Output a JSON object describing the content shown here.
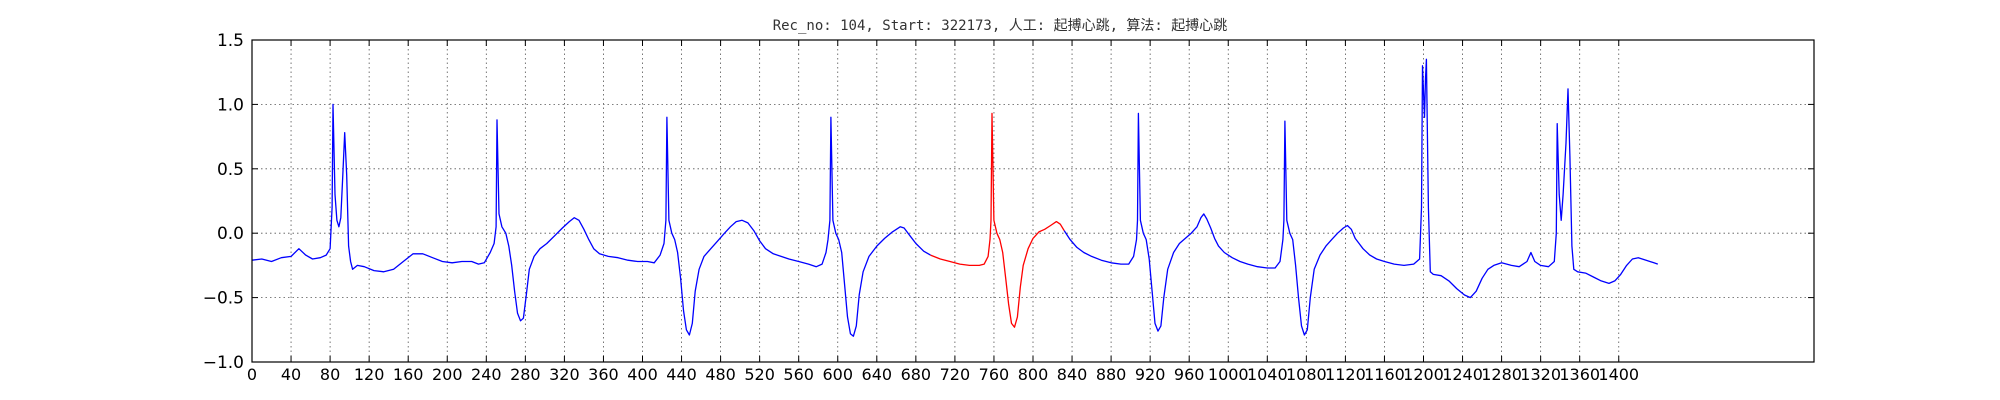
{
  "chart_data": {
    "type": "line",
    "title": "Rec_no: 104, Start: 322173, 人工: 起搏心跳, 算法: 起搏心跳",
    "xlabel": "",
    "ylabel": "",
    "xlim": [
      0,
      1600
    ],
    "ylim": [
      -1.0,
      1.5
    ],
    "grid": true,
    "x_ticks": [
      0,
      40,
      80,
      120,
      160,
      200,
      240,
      280,
      320,
      360,
      400,
      440,
      480,
      520,
      560,
      600,
      640,
      680,
      720,
      760,
      800,
      840,
      880,
      920,
      960,
      1000,
      1040,
      1080,
      1120,
      1160,
      1200,
      1240,
      1280,
      1320,
      1360,
      1400
    ],
    "y_ticks": [
      -1.0,
      -0.5,
      0.0,
      0.5,
      1.0,
      1.5
    ],
    "y_tick_labels": [
      "−1.0",
      "−0.5",
      "0.0",
      "0.5",
      "1.0",
      "1.5"
    ],
    "series": [
      {
        "color": "#0000ff",
        "points": [
          [
            0,
            -0.21
          ],
          [
            10,
            -0.2
          ],
          [
            20,
            -0.22
          ],
          [
            30,
            -0.19
          ],
          [
            40,
            -0.18
          ],
          [
            48,
            -0.12
          ],
          [
            55,
            -0.17
          ],
          [
            62,
            -0.2
          ],
          [
            70,
            -0.19
          ],
          [
            76,
            -0.17
          ],
          [
            80,
            -0.12
          ],
          [
            82,
            0.2
          ],
          [
            83,
            1.0
          ],
          [
            85,
            0.3
          ],
          [
            87,
            0.1
          ],
          [
            89,
            0.05
          ],
          [
            91,
            0.12
          ],
          [
            93,
            0.45
          ],
          [
            95,
            0.78
          ],
          [
            97,
            0.45
          ],
          [
            99,
            -0.1
          ],
          [
            101,
            -0.22
          ],
          [
            103,
            -0.28
          ],
          [
            108,
            -0.25
          ],
          [
            115,
            -0.26
          ],
          [
            125,
            -0.29
          ],
          [
            135,
            -0.3
          ],
          [
            145,
            -0.28
          ],
          [
            155,
            -0.22
          ],
          [
            165,
            -0.16
          ],
          [
            175,
            -0.16
          ],
          [
            185,
            -0.19
          ],
          [
            195,
            -0.22
          ],
          [
            205,
            -0.23
          ],
          [
            215,
            -0.22
          ],
          [
            225,
            -0.22
          ],
          [
            232,
            -0.24
          ],
          [
            238,
            -0.23
          ],
          [
            244,
            -0.15
          ],
          [
            248,
            -0.08
          ],
          [
            250,
            0.05
          ],
          [
            251,
            0.88
          ],
          [
            253,
            0.15
          ],
          [
            256,
            0.05
          ],
          [
            260,
            0.0
          ],
          [
            263,
            -0.1
          ],
          [
            266,
            -0.25
          ],
          [
            269,
            -0.45
          ],
          [
            272,
            -0.62
          ],
          [
            275,
            -0.68
          ],
          [
            278,
            -0.66
          ],
          [
            281,
            -0.48
          ],
          [
            284,
            -0.28
          ],
          [
            289,
            -0.18
          ],
          [
            295,
            -0.12
          ],
          [
            302,
            -0.08
          ],
          [
            310,
            -0.02
          ],
          [
            318,
            0.04
          ],
          [
            325,
            0.09
          ],
          [
            330,
            0.12
          ],
          [
            335,
            0.1
          ],
          [
            340,
            0.03
          ],
          [
            345,
            -0.05
          ],
          [
            350,
            -0.12
          ],
          [
            356,
            -0.16
          ],
          [
            365,
            -0.18
          ],
          [
            375,
            -0.19
          ],
          [
            385,
            -0.21
          ],
          [
            395,
            -0.22
          ],
          [
            405,
            -0.22
          ],
          [
            412,
            -0.23
          ],
          [
            418,
            -0.17
          ],
          [
            422,
            -0.08
          ],
          [
            424,
            0.1
          ],
          [
            425,
            0.9
          ],
          [
            427,
            0.1
          ],
          [
            430,
            0.0
          ],
          [
            433,
            -0.05
          ],
          [
            436,
            -0.15
          ],
          [
            439,
            -0.35
          ],
          [
            442,
            -0.6
          ],
          [
            445,
            -0.75
          ],
          [
            448,
            -0.79
          ],
          [
            451,
            -0.7
          ],
          [
            454,
            -0.45
          ],
          [
            458,
            -0.28
          ],
          [
            463,
            -0.18
          ],
          [
            470,
            -0.12
          ],
          [
            477,
            -0.06
          ],
          [
            484,
            0.0
          ],
          [
            490,
            0.05
          ],
          [
            496,
            0.09
          ],
          [
            502,
            0.1
          ],
          [
            508,
            0.08
          ],
          [
            514,
            0.02
          ],
          [
            520,
            -0.06
          ],
          [
            526,
            -0.12
          ],
          [
            534,
            -0.16
          ],
          [
            542,
            -0.18
          ],
          [
            550,
            -0.2
          ],
          [
            560,
            -0.22
          ],
          [
            570,
            -0.24
          ],
          [
            578,
            -0.26
          ],
          [
            584,
            -0.24
          ],
          [
            588,
            -0.15
          ],
          [
            590,
            -0.05
          ],
          [
            592,
            0.1
          ],
          [
            593,
            0.9
          ],
          [
            595,
            0.1
          ],
          [
            598,
            0.0
          ],
          [
            601,
            -0.05
          ],
          [
            604,
            -0.15
          ],
          [
            607,
            -0.4
          ],
          [
            610,
            -0.65
          ],
          [
            613,
            -0.78
          ],
          [
            616,
            -0.8
          ],
          [
            619,
            -0.72
          ],
          [
            622,
            -0.48
          ],
          [
            626,
            -0.3
          ],
          [
            632,
            -0.18
          ],
          [
            640,
            -0.1
          ],
          [
            648,
            -0.04
          ],
          [
            656,
            0.01
          ],
          [
            664,
            0.05
          ],
          [
            668,
            0.04
          ],
          [
            674,
            -0.02
          ],
          [
            680,
            -0.08
          ],
          [
            688,
            -0.14
          ],
          [
            695,
            -0.17
          ]
        ]
      },
      {
        "color": "#ff0000",
        "points": [
          [
            695,
            -0.17
          ],
          [
            705,
            -0.2
          ],
          [
            715,
            -0.22
          ],
          [
            725,
            -0.24
          ],
          [
            735,
            -0.25
          ],
          [
            745,
            -0.25
          ],
          [
            750,
            -0.24
          ],
          [
            754,
            -0.18
          ],
          [
            756,
            -0.05
          ],
          [
            757,
            0.1
          ],
          [
            758,
            0.93
          ],
          [
            760,
            0.1
          ],
          [
            763,
            0.0
          ],
          [
            766,
            -0.05
          ],
          [
            769,
            -0.15
          ],
          [
            772,
            -0.35
          ],
          [
            775,
            -0.55
          ],
          [
            778,
            -0.7
          ],
          [
            781,
            -0.73
          ],
          [
            784,
            -0.65
          ],
          [
            787,
            -0.42
          ],
          [
            790,
            -0.25
          ],
          [
            795,
            -0.12
          ],
          [
            800,
            -0.04
          ],
          [
            806,
            0.01
          ],
          [
            812,
            0.03
          ],
          [
            818,
            0.06
          ],
          [
            824,
            0.09
          ],
          [
            828,
            0.07
          ],
          [
            832,
            0.02
          ]
        ]
      },
      {
        "color": "#0000ff",
        "points": [
          [
            832,
            0.02
          ],
          [
            838,
            -0.05
          ],
          [
            845,
            -0.11
          ],
          [
            852,
            -0.15
          ],
          [
            860,
            -0.18
          ],
          [
            870,
            -0.21
          ],
          [
            880,
            -0.23
          ],
          [
            890,
            -0.24
          ],
          [
            898,
            -0.24
          ],
          [
            903,
            -0.18
          ],
          [
            906,
            -0.05
          ],
          [
            907,
            0.1
          ],
          [
            908,
            0.93
          ],
          [
            910,
            0.1
          ],
          [
            913,
            0.0
          ],
          [
            916,
            -0.05
          ],
          [
            919,
            -0.2
          ],
          [
            922,
            -0.45
          ],
          [
            925,
            -0.7
          ],
          [
            928,
            -0.76
          ],
          [
            931,
            -0.72
          ],
          [
            934,
            -0.5
          ],
          [
            938,
            -0.28
          ],
          [
            944,
            -0.15
          ],
          [
            950,
            -0.08
          ],
          [
            956,
            -0.04
          ],
          [
            962,
            0.0
          ],
          [
            968,
            0.05
          ],
          [
            972,
            0.12
          ],
          [
            975,
            0.15
          ],
          [
            978,
            0.11
          ],
          [
            982,
            0.04
          ],
          [
            986,
            -0.04
          ],
          [
            990,
            -0.1
          ],
          [
            996,
            -0.15
          ],
          [
            1004,
            -0.19
          ],
          [
            1012,
            -0.22
          ],
          [
            1020,
            -0.24
          ],
          [
            1030,
            -0.26
          ],
          [
            1040,
            -0.27
          ],
          [
            1048,
            -0.27
          ],
          [
            1053,
            -0.22
          ],
          [
            1056,
            -0.05
          ],
          [
            1057,
            0.1
          ],
          [
            1058,
            0.87
          ],
          [
            1060,
            0.1
          ],
          [
            1063,
            0.0
          ],
          [
            1066,
            -0.05
          ],
          [
            1069,
            -0.25
          ],
          [
            1072,
            -0.5
          ],
          [
            1075,
            -0.72
          ],
          [
            1078,
            -0.79
          ],
          [
            1081,
            -0.75
          ],
          [
            1084,
            -0.5
          ],
          [
            1088,
            -0.28
          ],
          [
            1094,
            -0.17
          ],
          [
            1100,
            -0.1
          ],
          [
            1106,
            -0.05
          ],
          [
            1112,
            0.0
          ],
          [
            1118,
            0.04
          ],
          [
            1122,
            0.06
          ],
          [
            1126,
            0.03
          ],
          [
            1130,
            -0.04
          ],
          [
            1134,
            -0.08
          ],
          [
            1138,
            -0.12
          ],
          [
            1145,
            -0.17
          ],
          [
            1152,
            -0.2
          ],
          [
            1160,
            -0.22
          ],
          [
            1170,
            -0.24
          ],
          [
            1180,
            -0.25
          ],
          [
            1190,
            -0.24
          ],
          [
            1196,
            -0.2
          ],
          [
            1198,
            0.2
          ],
          [
            1199,
            1.3
          ],
          [
            1200,
            1.1
          ],
          [
            1201,
            0.9
          ],
          [
            1202,
            1.2
          ],
          [
            1203,
            1.35
          ],
          [
            1205,
            0.2
          ],
          [
            1207,
            -0.3
          ],
          [
            1210,
            -0.32
          ],
          [
            1218,
            -0.33
          ],
          [
            1226,
            -0.37
          ],
          [
            1234,
            -0.43
          ],
          [
            1242,
            -0.48
          ],
          [
            1248,
            -0.5
          ],
          [
            1254,
            -0.45
          ],
          [
            1260,
            -0.35
          ],
          [
            1266,
            -0.28
          ],
          [
            1272,
            -0.25
          ],
          [
            1280,
            -0.23
          ],
          [
            1290,
            -0.25
          ],
          [
            1298,
            -0.26
          ],
          [
            1306,
            -0.22
          ],
          [
            1310,
            -0.15
          ],
          [
            1314,
            -0.22
          ],
          [
            1320,
            -0.25
          ],
          [
            1328,
            -0.26
          ],
          [
            1334,
            -0.22
          ],
          [
            1336,
            0.0
          ],
          [
            1337,
            0.85
          ],
          [
            1339,
            0.3
          ],
          [
            1341,
            0.1
          ],
          [
            1343,
            0.3
          ],
          [
            1346,
            0.7
          ],
          [
            1348,
            1.12
          ],
          [
            1350,
            0.6
          ],
          [
            1352,
            -0.1
          ],
          [
            1354,
            -0.28
          ],
          [
            1358,
            -0.3
          ],
          [
            1366,
            -0.31
          ],
          [
            1374,
            -0.34
          ],
          [
            1382,
            -0.37
          ],
          [
            1390,
            -0.39
          ],
          [
            1396,
            -0.37
          ],
          [
            1402,
            -0.32
          ],
          [
            1408,
            -0.25
          ],
          [
            1414,
            -0.2
          ],
          [
            1420,
            -0.19
          ],
          [
            1428,
            -0.21
          ],
          [
            1436,
            -0.23
          ],
          [
            1440,
            -0.24
          ]
        ]
      }
    ]
  }
}
